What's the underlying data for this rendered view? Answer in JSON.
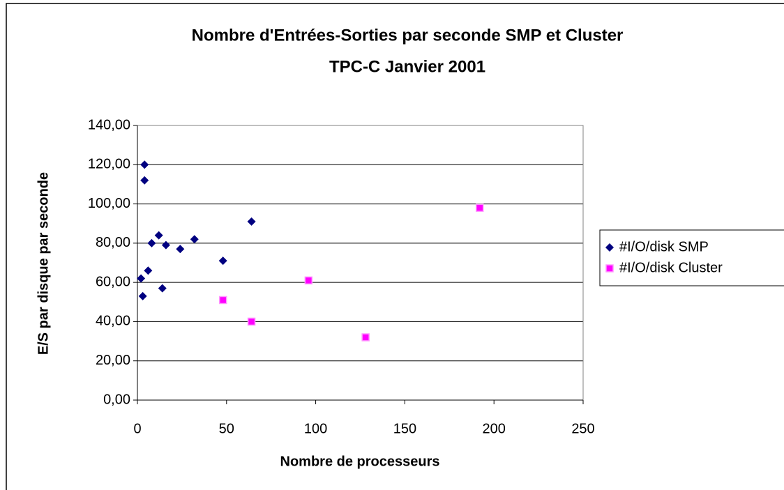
{
  "chart_data": {
    "type": "scatter",
    "title": [
      "Nombre d'Entrées-Sorties par seconde SMP et Cluster",
      "TPC-C Janvier 2001"
    ],
    "x_label": "Nombre de processeurs",
    "y_label": "E/S par disque par seconde",
    "xlim": [
      0,
      250
    ],
    "xticks": [
      0,
      50,
      100,
      150,
      200,
      250
    ],
    "ylim": [
      0,
      140
    ],
    "yticks": [
      {
        "value": 0,
        "label": "0,00"
      },
      {
        "value": 20,
        "label": "20,00"
      },
      {
        "value": 40,
        "label": "40,00"
      },
      {
        "value": 60,
        "label": "60,00"
      },
      {
        "value": 80,
        "label": "80,00"
      },
      {
        "value": 100,
        "label": "100,00"
      },
      {
        "value": 120,
        "label": "120,00"
      },
      {
        "value": 140,
        "label": "140,00"
      }
    ],
    "grid": true,
    "legend": "right",
    "series": [
      {
        "name": "#I/O/disk SMP",
        "color": "#000080",
        "marker": "diamond",
        "x": [
          2,
          3,
          4,
          4,
          6,
          8,
          12,
          14,
          16,
          24,
          32,
          48,
          64
        ],
        "values": [
          62,
          53,
          120,
          112,
          66,
          80,
          84,
          57,
          79,
          77,
          82,
          71,
          91
        ]
      },
      {
        "name": "#I/O/disk Cluster",
        "color": "#ff00ff",
        "marker": "square",
        "x": [
          48,
          64,
          96,
          128,
          192
        ],
        "values": [
          51,
          40,
          61,
          32,
          98
        ]
      }
    ]
  }
}
